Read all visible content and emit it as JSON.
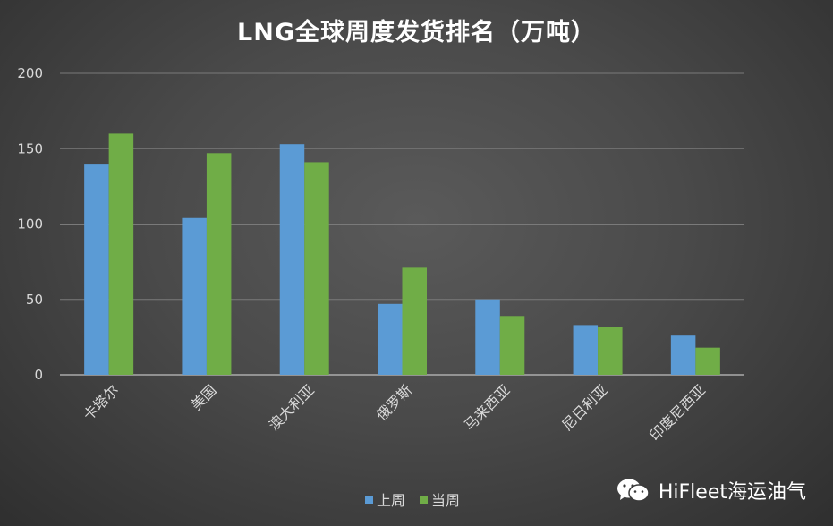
{
  "chart_data": {
    "type": "bar",
    "title": "LNG全球周度发货排名（万吨）",
    "categories": [
      "卡塔尔",
      "美国",
      "澳大利亚",
      "俄罗斯",
      "马来西亚",
      "尼日利亚",
      "印度尼西亚"
    ],
    "series": [
      {
        "name": "上周",
        "color": "#5b9bd5",
        "values": [
          140,
          104,
          153,
          47,
          50,
          33,
          26
        ]
      },
      {
        "name": "当周",
        "color": "#70ad47",
        "values": [
          160,
          147,
          141,
          71,
          39,
          32,
          18
        ]
      }
    ],
    "ylim": [
      0,
      200
    ],
    "yticks": [
      0,
      50,
      100,
      150,
      200
    ],
    "grid": true,
    "legend_position": "bottom"
  },
  "legend": {
    "items": [
      {
        "label": "上周",
        "color": "#5b9bd5"
      },
      {
        "label": "当周",
        "color": "#70ad47"
      }
    ]
  },
  "watermark": {
    "icon": "wechat-icon",
    "text": "HiFleet海运油气"
  }
}
